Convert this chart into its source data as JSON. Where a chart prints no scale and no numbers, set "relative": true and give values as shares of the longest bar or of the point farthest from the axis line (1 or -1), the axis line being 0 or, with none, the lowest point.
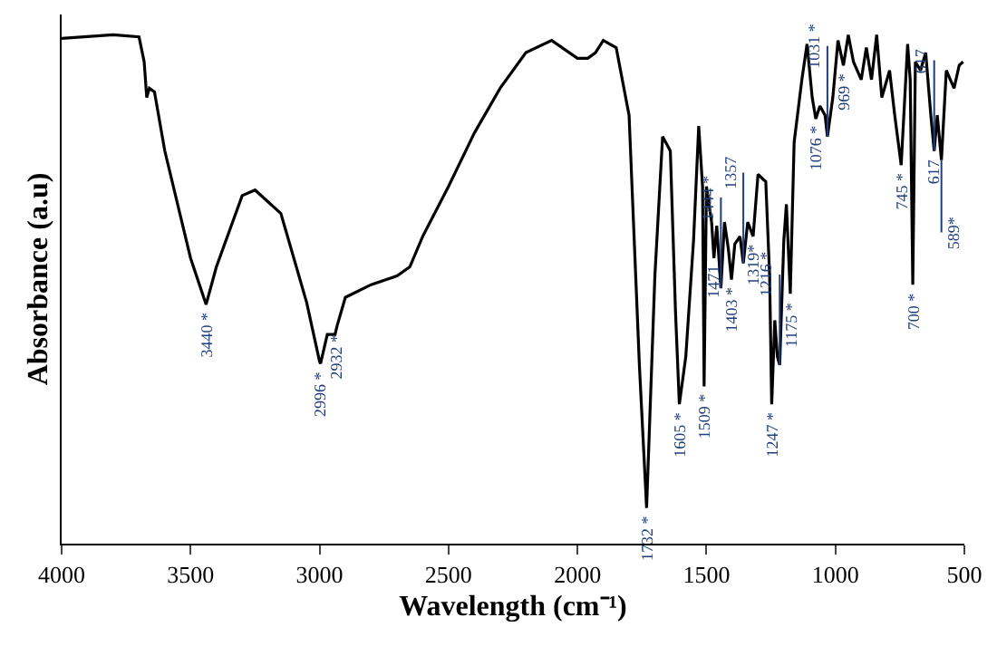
{
  "chart_data": {
    "type": "line",
    "relative": true,
    "xlabel": "Wavelength (cm⁻¹)",
    "ylabel": "Absorbance (a.u)",
    "xlim": [
      4000,
      500
    ],
    "xticks": [
      4000,
      3500,
      3000,
      2500,
      2000,
      1500,
      1000,
      500
    ],
    "legend": false,
    "marker": "none",
    "line_style": "solid",
    "series": [
      {
        "color": "#000000",
        "x": [
          4000,
          3800,
          3700,
          3680,
          3670,
          3660,
          3640,
          3600,
          3500,
          3440,
          3400,
          3300,
          3250,
          3150,
          3050,
          3000,
          2996,
          2970,
          2940,
          2932,
          2900,
          2800,
          2700,
          2650,
          2600,
          2500,
          2400,
          2300,
          2200,
          2100,
          2000,
          1960,
          1930,
          1900,
          1850,
          1800,
          1760,
          1732,
          1700,
          1670,
          1640,
          1620,
          1605,
          1580,
          1550,
          1530,
          1515,
          1509,
          1500,
          1480,
          1471,
          1460,
          1444,
          1430,
          1415,
          1403,
          1390,
          1370,
          1357,
          1340,
          1319,
          1300,
          1280,
          1270,
          1255,
          1247,
          1235,
          1225,
          1216,
          1200,
          1190,
          1175,
          1160,
          1130,
          1110,
          1090,
          1076,
          1060,
          1040,
          1031,
          1010,
          990,
          969,
          950,
          930,
          900,
          880,
          860,
          840,
          820,
          790,
          770,
          745,
          720,
          710,
          700,
          690,
          670,
          650,
          630,
          617,
          605,
          589,
          570,
          540,
          520,
          505
        ],
        "values": [
          0.993,
          1,
          0.996,
          0.947,
          0.877,
          0.895,
          0.888,
          0.772,
          0.561,
          0.47,
          0.544,
          0.684,
          0.695,
          0.649,
          0.474,
          0.358,
          0.354,
          0.411,
          0.411,
          0.428,
          0.484,
          0.509,
          0.526,
          0.544,
          0.604,
          0.702,
          0.807,
          0.895,
          0.965,
          0.989,
          0.954,
          0.954,
          0.965,
          0.989,
          0.975,
          0.842,
          0.351,
          0.07,
          0.526,
          0.8,
          0.772,
          0.456,
          0.274,
          0.368,
          0.596,
          0.821,
          0.702,
          0.309,
          0.702,
          0.632,
          0.561,
          0.625,
          0.502,
          0.632,
          0.579,
          0.519,
          0.589,
          0.604,
          0.551,
          0.632,
          0.604,
          0.726,
          0.716,
          0.712,
          0.526,
          0.274,
          0.439,
          0.368,
          0.351,
          0.596,
          0.667,
          0.491,
          0.789,
          0.912,
          0.982,
          0.877,
          0.835,
          0.86,
          0.842,
          0.8,
          0.877,
          0.989,
          0.94,
          1,
          0.947,
          0.912,
          0.975,
          0.912,
          1,
          0.877,
          0.93,
          0.842,
          0.744,
          0.982,
          0.912,
          0.509,
          0.947,
          0.93,
          0.965,
          0.842,
          0.772,
          0.842,
          0.754,
          0.93,
          0.895,
          0.94,
          0.947
        ]
      }
    ],
    "annotations": [
      {
        "text": "3440 *",
        "x": 3440,
        "y": 0.47
      },
      {
        "text": "2996 *",
        "x": 2996,
        "y": 0.354
      },
      {
        "text": "2932 *",
        "x": 2932,
        "y": 0.428
      },
      {
        "text": "1732 *",
        "x": 1732,
        "y": 0.07
      },
      {
        "text": "1605 *",
        "x": 1605,
        "y": 0.274
      },
      {
        "text": "1509 *",
        "x": 1509,
        "y": 0.309
      },
      {
        "text": "1471",
        "x": 1471,
        "y": 0.561
      },
      {
        "text": "1444 *",
        "x": 1444,
        "y": 0.502
      },
      {
        "text": "1403 *",
        "x": 1403,
        "y": 0.519
      },
      {
        "text": "1357",
        "x": 1357,
        "y": 0.551
      },
      {
        "text": "1319*",
        "x": 1319,
        "y": 0.604
      },
      {
        "text": "1247 *",
        "x": 1247,
        "y": 0.274
      },
      {
        "text": "1216 *",
        "x": 1216,
        "y": 0.351
      },
      {
        "text": "1175 *",
        "x": 1175,
        "y": 0.491
      },
      {
        "text": "1076 *",
        "x": 1076,
        "y": 0.835
      },
      {
        "text": "1031 *",
        "x": 1031,
        "y": 0.8
      },
      {
        "text": "969 *",
        "x": 969,
        "y": 0.94
      },
      {
        "text": "745 *",
        "x": 745,
        "y": 0.744
      },
      {
        "text": "700 *",
        "x": 700,
        "y": 0.509
      },
      {
        "text": "617",
        "x": 617,
        "y": 0.772
      },
      {
        "text": "617",
        "x": 617,
        "y": 0.772
      },
      {
        "text": "589*",
        "x": 589,
        "y": 0.754
      }
    ]
  }
}
